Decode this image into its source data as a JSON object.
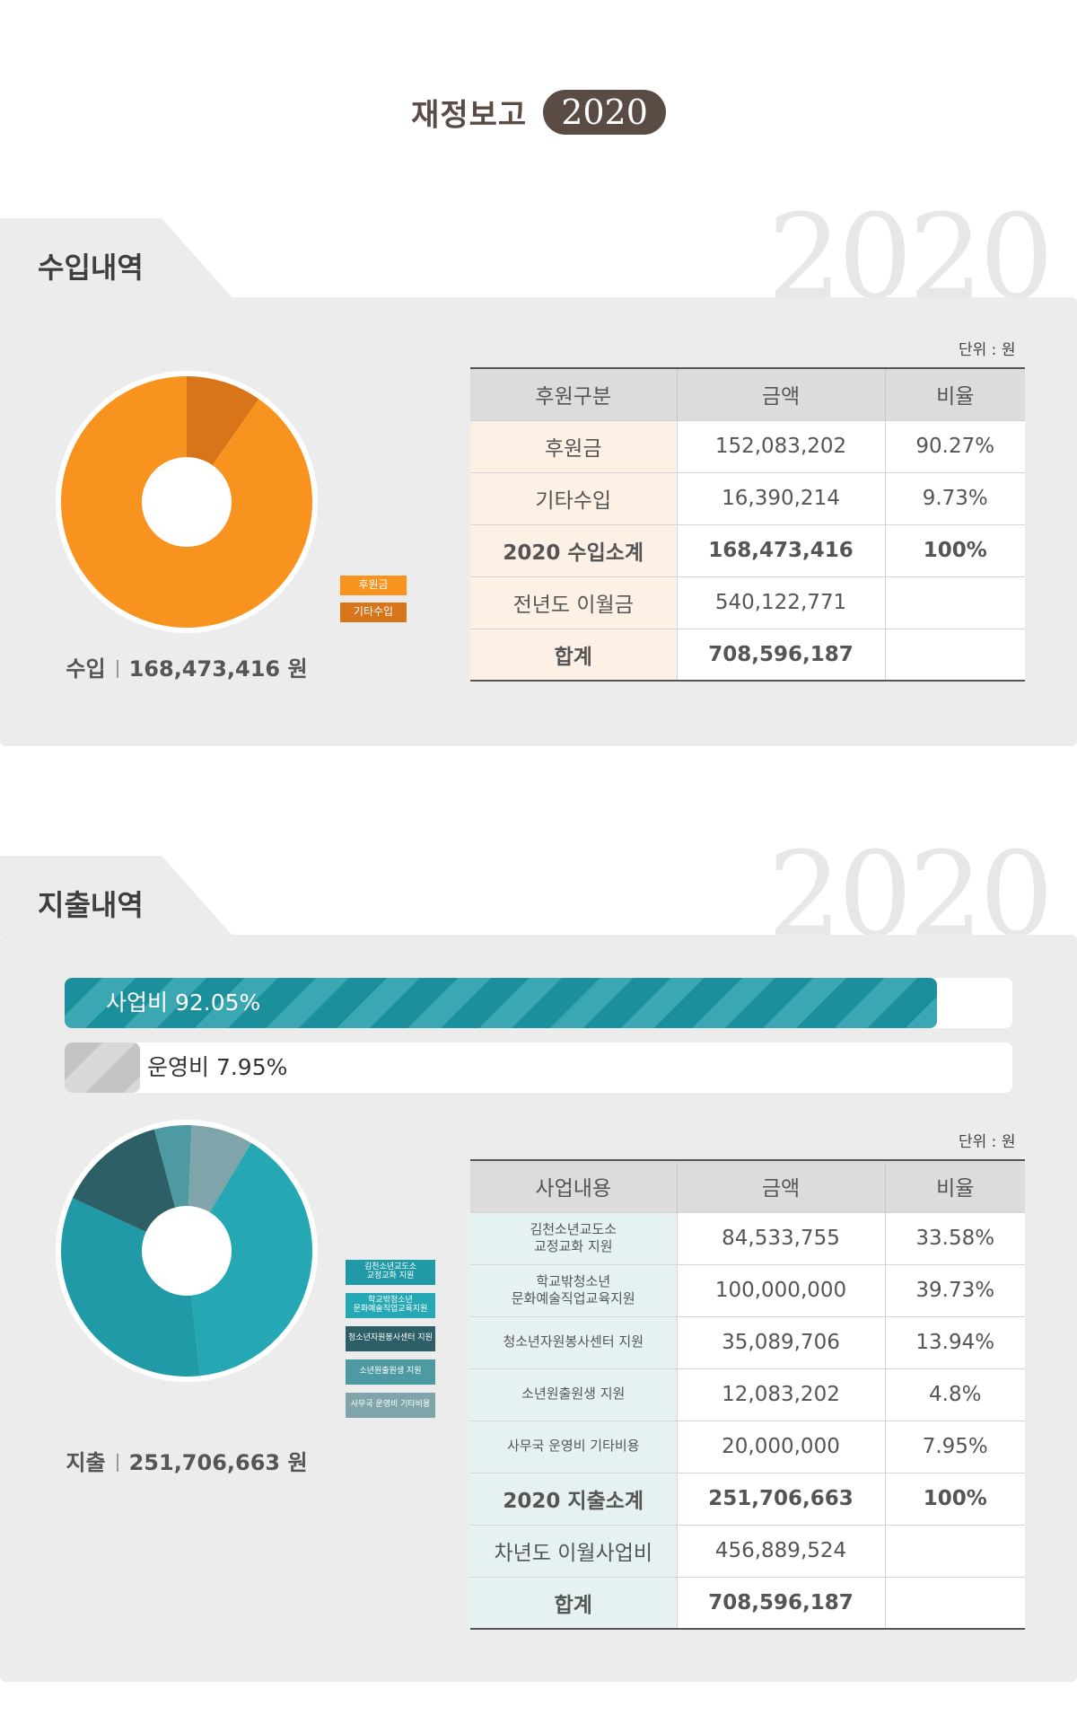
{
  "header": {
    "title": "재정보고",
    "year": "2020"
  },
  "income": {
    "section_label": "수입내역",
    "watermark": "2020",
    "unit": "단위 : 원",
    "total_label": "수입",
    "total_value": "168,473,416 원",
    "legend": [
      {
        "label": "후원금",
        "color": "#f7931e"
      },
      {
        "label": "기타수입",
        "color": "#d8741a"
      }
    ],
    "table": {
      "headers": [
        "후원구분",
        "금액",
        "비율"
      ],
      "rows": [
        {
          "cells": [
            "후원금",
            "152,083,202",
            "90.27%"
          ]
        },
        {
          "cells": [
            "기타수입",
            "16,390,214",
            "9.73%"
          ]
        },
        {
          "cells": [
            "2020 수입소계",
            "168,473,416",
            "100%"
          ]
        },
        {
          "cells": [
            "전년도 이월금",
            "540,122,771",
            ""
          ]
        },
        {
          "cells": [
            "합계",
            "708,596,187",
            ""
          ]
        }
      ]
    }
  },
  "expense": {
    "section_label": "지출내역",
    "watermark": "2020",
    "unit": "단위 : 원",
    "total_label": "지출",
    "total_value": "251,706,663 원",
    "bars": [
      {
        "label": "사업비 92.05%",
        "value": 92.05,
        "color": "#1c8f9c"
      },
      {
        "label": "운영비 7.95%",
        "value": 7.95,
        "color": "#c9c9c9"
      }
    ],
    "legend": [
      {
        "label": "김천소년교도소\n교정교화 지원",
        "color": "#1f9aa6"
      },
      {
        "label": "학교밖청소년\n문화예술직업교육지원",
        "color": "#25a7b4"
      },
      {
        "label": "청소년자원봉사센터 지원",
        "color": "#2d5f66"
      },
      {
        "label": "소년원출원생 지원",
        "color": "#4e9aa3"
      },
      {
        "label": "사무국 운영비 기타비용",
        "color": "#7fa4a9"
      }
    ],
    "table": {
      "headers": [
        "사업내용",
        "금액",
        "비율"
      ],
      "rows": [
        {
          "cells": [
            "김천소년교도소\n교정교화 지원",
            "84,533,755",
            "33.58%"
          ]
        },
        {
          "cells": [
            "학교밖청소년\n문화예술직업교육지원",
            "100,000,000",
            "39.73%"
          ]
        },
        {
          "cells": [
            "청소년자원봉사센터 지원",
            "35,089,706",
            "13.94%"
          ]
        },
        {
          "cells": [
            "소년원출원생 지원",
            "12,083,202",
            "4.8%"
          ]
        },
        {
          "cells": [
            "사무국 운영비 기타비용",
            "20,000,000",
            "7.95%"
          ]
        },
        {
          "cells": [
            "2020 지출소계",
            "251,706,663",
            "100%"
          ]
        },
        {
          "cells": [
            "차년도 이월사업비",
            "456,889,524",
            ""
          ]
        },
        {
          "cells": [
            "합계",
            "708,596,187",
            ""
          ]
        }
      ]
    }
  },
  "chart_data": [
    {
      "type": "pie",
      "categories": [
        "후원금",
        "기타수입"
      ],
      "values": [
        90.27,
        9.73
      ],
      "colors": [
        "#f7931e",
        "#d8741a"
      ]
    },
    {
      "type": "bar",
      "categories": [
        "사업비",
        "운영비"
      ],
      "values": [
        92.05,
        7.95
      ],
      "xlim": [
        0,
        100
      ]
    },
    {
      "type": "pie",
      "categories": [
        "김천소년교도소 교정교화 지원",
        "학교밖청소년 문화예술직업교육지원",
        "청소년자원봉사센터 지원",
        "소년원출원생 지원",
        "사무국 운영비 기타비용"
      ],
      "values": [
        33.58,
        39.73,
        13.94,
        4.8,
        7.95
      ],
      "colors": [
        "#1f9aa6",
        "#25a7b4",
        "#2d5f66",
        "#4e9aa3",
        "#7fa4a9"
      ]
    }
  ]
}
